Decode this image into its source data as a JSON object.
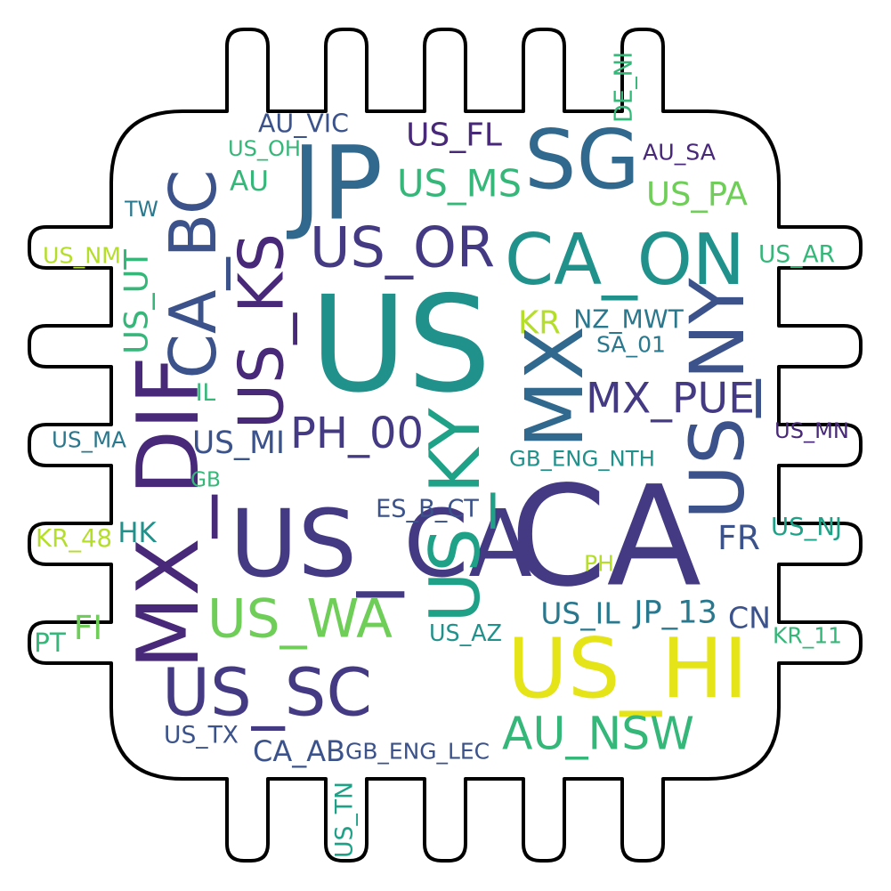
{
  "cloud": {
    "colors": {
      "dark_purple": "#482878",
      "indigo": "#443a83",
      "blue": "#3b528b",
      "steel_blue": "#31688e",
      "teal_blue": "#2a788e",
      "teal": "#21918c",
      "sea_green": "#1fa187",
      "green": "#35b779",
      "light_green": "#6ece58",
      "lime": "#b5de2b",
      "yellow": "#e5e419",
      "outline": "#000000"
    },
    "words": [
      {
        "text": "US_CA",
        "color": "indigo"
      },
      {
        "text": "US",
        "color": "teal"
      },
      {
        "text": "CA",
        "color": "indigo"
      },
      {
        "text": "JP",
        "color": "steel_blue"
      },
      {
        "text": "SG",
        "color": "steel_blue"
      },
      {
        "text": "CA_ON",
        "color": "teal"
      },
      {
        "text": "MX_DIF",
        "color": "dark_purple"
      },
      {
        "text": "CA_BC",
        "color": "blue"
      },
      {
        "text": "US_KS",
        "color": "dark_purple"
      },
      {
        "text": "US_OR",
        "color": "indigo"
      },
      {
        "text": "MX",
        "color": "steel_blue"
      },
      {
        "text": "US_NY",
        "color": "blue"
      },
      {
        "text": "US_KY",
        "color": "sea_green"
      },
      {
        "text": "US_HI",
        "color": "yellow"
      },
      {
        "text": "US_SC",
        "color": "indigo"
      },
      {
        "text": "US_WA",
        "color": "light_green"
      },
      {
        "text": "AU_NSW",
        "color": "green"
      },
      {
        "text": "MX_PUE",
        "color": "indigo"
      },
      {
        "text": "PH_00",
        "color": "indigo"
      },
      {
        "text": "US_MS",
        "color": "green"
      },
      {
        "text": "US_FL",
        "color": "dark_purple"
      },
      {
        "text": "US_UT",
        "color": "green"
      },
      {
        "text": "NZ_MWT",
        "color": "teal_blue"
      },
      {
        "text": "US_PA",
        "color": "light_green"
      },
      {
        "text": "AU_SA",
        "color": "dark_purple"
      },
      {
        "text": "AU_VIC",
        "color": "blue"
      },
      {
        "text": "US_OH",
        "color": "green"
      },
      {
        "text": "AU",
        "color": "green"
      },
      {
        "text": "TW",
        "color": "teal_blue"
      },
      {
        "text": "US_NM",
        "color": "lime"
      },
      {
        "text": "US_AR",
        "color": "green"
      },
      {
        "text": "DE_NI",
        "color": "green"
      },
      {
        "text": "KR",
        "color": "lime"
      },
      {
        "text": "SA_01",
        "color": "teal_blue"
      },
      {
        "text": "IL",
        "color": "green"
      },
      {
        "text": "US_MA",
        "color": "teal_blue"
      },
      {
        "text": "US_MI",
        "color": "blue"
      },
      {
        "text": "US_MN",
        "color": "dark_purple"
      },
      {
        "text": "GB_ENG_NTH",
        "color": "teal"
      },
      {
        "text": "GB",
        "color": "green"
      },
      {
        "text": "ES_B_CT",
        "color": "blue"
      },
      {
        "text": "HK",
        "color": "teal"
      },
      {
        "text": "KR_48",
        "color": "lime"
      },
      {
        "text": "FR",
        "color": "blue"
      },
      {
        "text": "US_NJ",
        "color": "sea_green"
      },
      {
        "text": "PH",
        "color": "lime"
      },
      {
        "text": "FI",
        "color": "light_green"
      },
      {
        "text": "US_IL",
        "color": "teal_blue"
      },
      {
        "text": "JP_13",
        "color": "teal_blue"
      },
      {
        "text": "CN",
        "color": "blue"
      },
      {
        "text": "PT",
        "color": "green"
      },
      {
        "text": "US_AZ",
        "color": "teal"
      },
      {
        "text": "KR_11",
        "color": "green"
      },
      {
        "text": "US_TX",
        "color": "blue"
      },
      {
        "text": "CA_AB",
        "color": "blue"
      },
      {
        "text": "GB_ENG_LEC",
        "color": "blue"
      },
      {
        "text": "US_TN",
        "color": "sea_green"
      }
    ]
  }
}
